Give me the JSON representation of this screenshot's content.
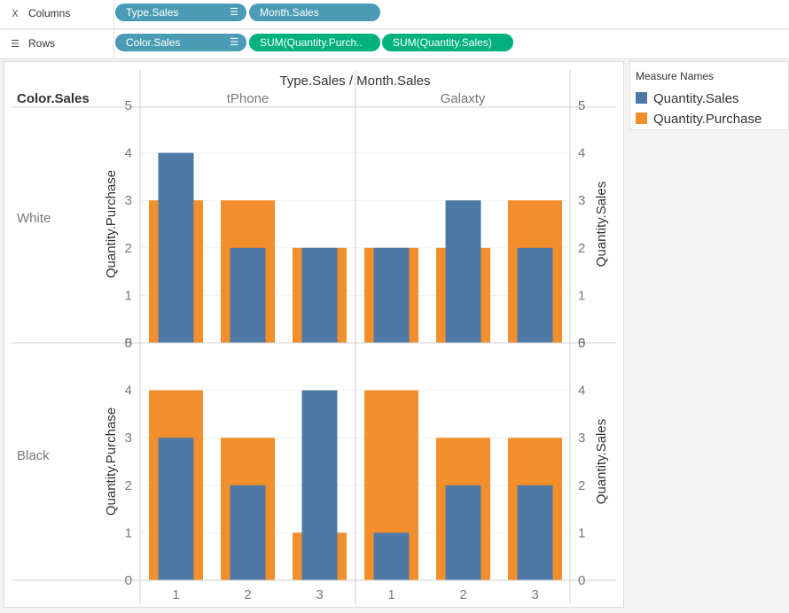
{
  "shelves": {
    "columns": {
      "label": "Columns",
      "pills": [
        "Type.Sales",
        "Month.Sales"
      ]
    },
    "rows": {
      "label": "Rows",
      "pills": [
        "Color.Sales",
        "SUM(Quantity.Purch..",
        "SUM(Quantity.Sales)"
      ]
    }
  },
  "legend": {
    "title": "Measure Names",
    "items": [
      {
        "name": "Quantity.Sales",
        "color": "#4e79a7"
      },
      {
        "name": "Quantity.Purchase",
        "color": "#f28e2b"
      }
    ]
  },
  "chart_data": {
    "type": "bar",
    "title": "Type.Sales / Month.Sales",
    "row_header": "Color.Sales",
    "left_axis_label": "Quantity.Purchase",
    "right_axis_label": "Quantity.Sales",
    "ylim": [
      0,
      5
    ],
    "yticks": [
      0,
      1,
      2,
      3,
      4,
      5
    ],
    "columns": [
      "tPhone",
      "Galaxty"
    ],
    "months": [
      "1",
      "2",
      "3"
    ],
    "rows": [
      {
        "color": "White",
        "panels": [
          {
            "type": "tPhone",
            "purchase": [
              3,
              3,
              2
            ],
            "sales": [
              4,
              2,
              2
            ]
          },
          {
            "type": "Galaxty",
            "purchase": [
              2,
              2,
              3
            ],
            "sales": [
              2,
              3,
              2
            ]
          }
        ]
      },
      {
        "color": "Black",
        "panels": [
          {
            "type": "tPhone",
            "purchase": [
              4,
              3,
              1
            ],
            "sales": [
              3,
              2,
              4
            ]
          },
          {
            "type": "Galaxty",
            "purchase": [
              4,
              3,
              3
            ],
            "sales": [
              1,
              2,
              2
            ]
          }
        ]
      }
    ]
  }
}
